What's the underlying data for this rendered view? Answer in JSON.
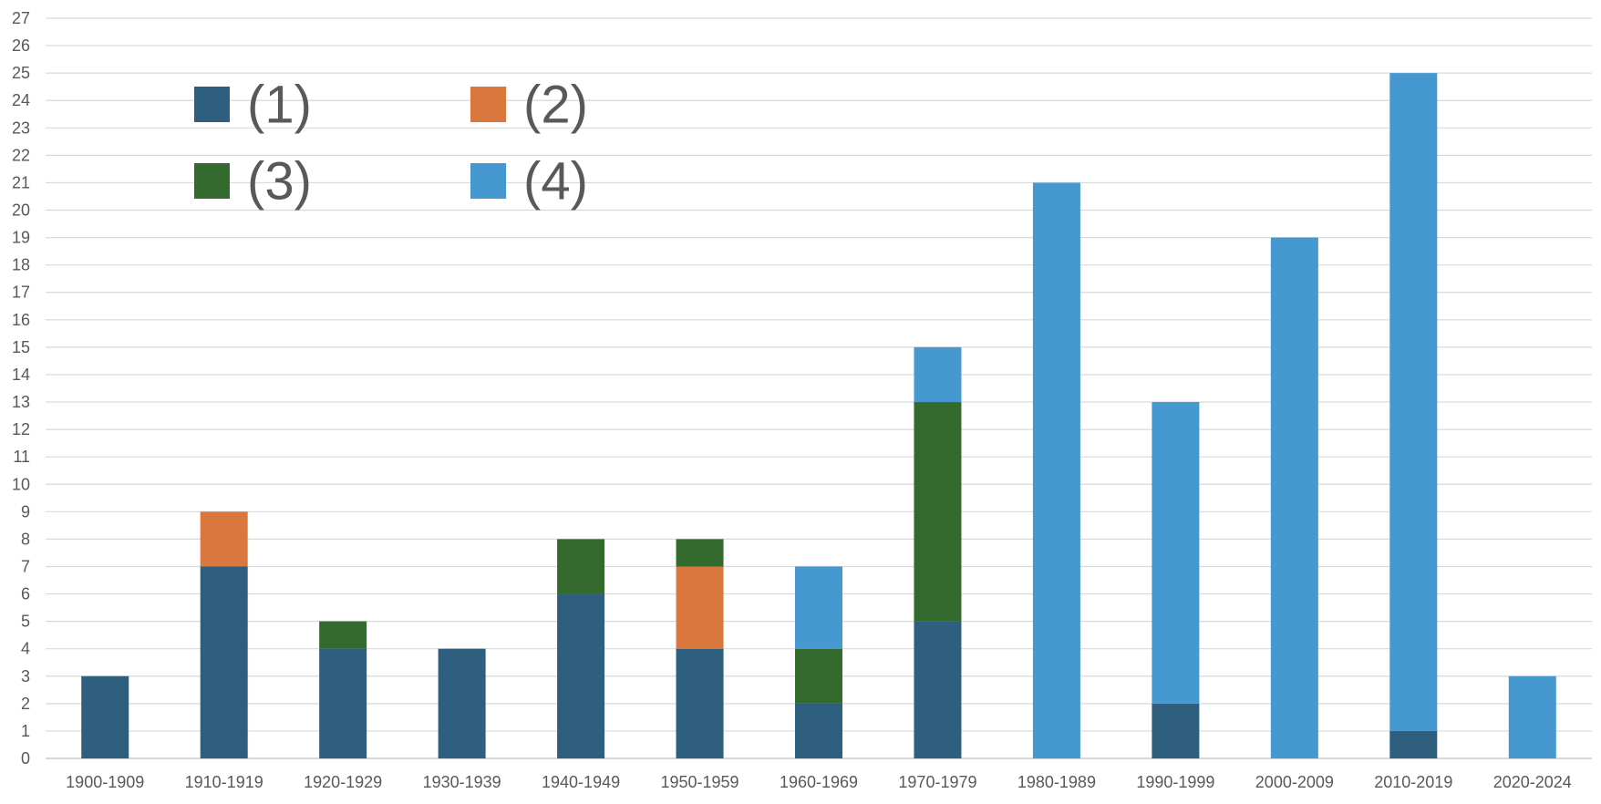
{
  "chart_data": {
    "type": "bar",
    "stacked": true,
    "categories": [
      "1900-1909",
      "1910-1919",
      "1920-1929",
      "1930-1939",
      "1940-1949",
      "1950-1959",
      "1960-1969",
      "1970-1979",
      "1980-1989",
      "1990-1999",
      "2000-2009",
      "2010-2019",
      "2020-2024"
    ],
    "series": [
      {
        "name": "(1)",
        "color": "#2E5F7F",
        "values": [
          3,
          7,
          4,
          4,
          6,
          4,
          2,
          5,
          0,
          2,
          0,
          1,
          0
        ]
      },
      {
        "name": "(2)",
        "color": "#D9773F",
        "values": [
          0,
          2,
          0,
          0,
          0,
          3,
          0,
          0,
          0,
          0,
          0,
          0,
          0
        ]
      },
      {
        "name": "(3)",
        "color": "#356A2E",
        "values": [
          0,
          0,
          1,
          0,
          2,
          1,
          2,
          8,
          0,
          0,
          0,
          0,
          0
        ]
      },
      {
        "name": "(4)",
        "color": "#4599D0",
        "values": [
          0,
          0,
          0,
          0,
          0,
          0,
          3,
          2,
          21,
          11,
          19,
          24,
          3
        ]
      }
    ],
    "ylim": [
      0,
      27
    ],
    "yticks": [
      0,
      1,
      2,
      3,
      4,
      5,
      6,
      7,
      8,
      9,
      10,
      11,
      12,
      13,
      14,
      15,
      16,
      17,
      18,
      19,
      20,
      21,
      22,
      23,
      24,
      25,
      26,
      27
    ],
    "grid": true,
    "legend_position": "top-left",
    "legend_columns": 2,
    "title": "",
    "xlabel": "",
    "ylabel": ""
  }
}
